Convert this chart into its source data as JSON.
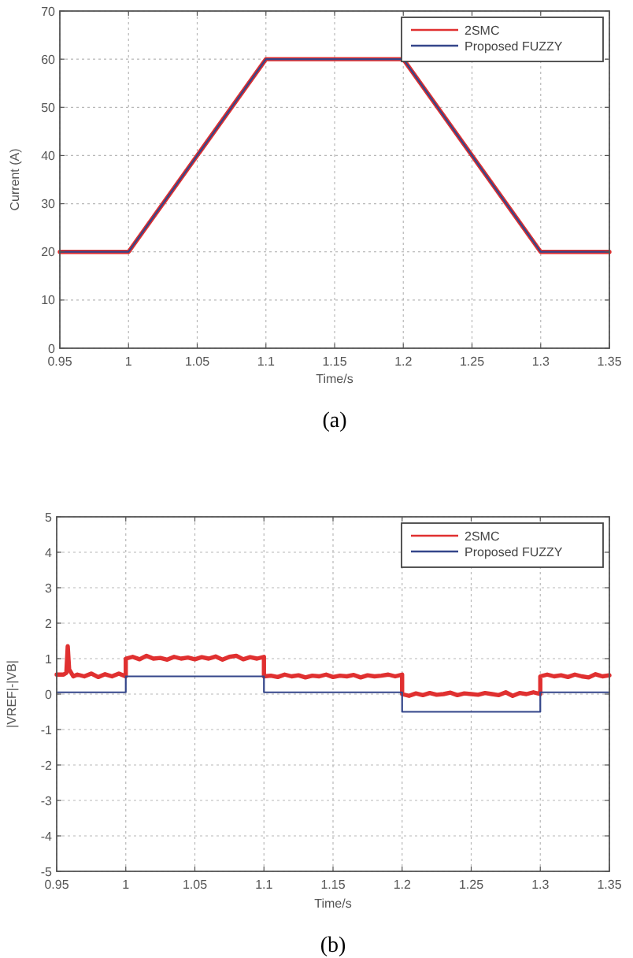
{
  "chart_data": [
    {
      "type": "line",
      "xlabel": "Time/s",
      "ylabel": "Current (A)",
      "annotations": [
        "(a)"
      ],
      "xlim": [
        0.95,
        1.35
      ],
      "xticks": [
        0.95,
        1,
        1.05,
        1.1,
        1.15,
        1.2,
        1.25,
        1.3,
        1.35
      ],
      "ylim": [
        0,
        70
      ],
      "yticks": [
        0,
        10,
        20,
        30,
        40,
        50,
        60,
        70
      ],
      "grid": true,
      "legend": "top right",
      "series": [
        {
          "name": "2SMC",
          "color": "#e03030",
          "x": [
            0.95,
            1.0,
            1.1,
            1.2,
            1.3,
            1.35
          ],
          "values": [
            20,
            20,
            60,
            60,
            20,
            20
          ]
        },
        {
          "name": "Proposed FUZZY",
          "color": "#34468a",
          "x": [
            0.95,
            1.0,
            1.1,
            1.2,
            1.3,
            1.35
          ],
          "values": [
            20,
            20,
            60,
            60,
            20,
            20
          ]
        }
      ]
    },
    {
      "type": "line",
      "xlabel": "Time/s",
      "ylabel": "|VREF|-|VB|",
      "annotations": [
        "(b)"
      ],
      "xlim": [
        0.95,
        1.35
      ],
      "xticks": [
        0.95,
        1,
        1.05,
        1.1,
        1.15,
        1.2,
        1.25,
        1.3,
        1.35
      ],
      "ylim": [
        -5,
        5
      ],
      "yticks": [
        -5,
        -4,
        -3,
        -2,
        -1,
        0,
        1,
        2,
        3,
        4,
        5
      ],
      "grid": true,
      "legend": "top right",
      "series": [
        {
          "name": "2SMC",
          "color": "#e03030",
          "x": [
            0.95,
            0.955,
            0.957,
            0.958,
            0.959,
            0.962,
            0.965,
            0.97,
            0.975,
            0.98,
            0.985,
            0.99,
            0.995,
            1.0,
            1.0,
            1.005,
            1.01,
            1.015,
            1.02,
            1.025,
            1.03,
            1.035,
            1.04,
            1.045,
            1.05,
            1.055,
            1.06,
            1.065,
            1.07,
            1.075,
            1.08,
            1.085,
            1.09,
            1.095,
            1.1,
            1.1,
            1.105,
            1.11,
            1.115,
            1.12,
            1.125,
            1.13,
            1.135,
            1.14,
            1.145,
            1.15,
            1.155,
            1.16,
            1.165,
            1.17,
            1.175,
            1.18,
            1.185,
            1.19,
            1.195,
            1.2,
            1.2,
            1.205,
            1.21,
            1.215,
            1.22,
            1.225,
            1.23,
            1.235,
            1.24,
            1.245,
            1.25,
            1.255,
            1.26,
            1.265,
            1.27,
            1.275,
            1.28,
            1.285,
            1.29,
            1.295,
            1.3,
            1.3,
            1.305,
            1.31,
            1.315,
            1.32,
            1.325,
            1.33,
            1.335,
            1.34,
            1.345,
            1.35
          ],
          "values": [
            0.55,
            0.55,
            0.6,
            1.35,
            0.7,
            0.5,
            0.55,
            0.5,
            0.58,
            0.48,
            0.56,
            0.5,
            0.58,
            0.5,
            1.0,
            1.05,
            0.98,
            1.08,
            1.0,
            1.02,
            0.97,
            1.05,
            1.0,
            1.03,
            0.98,
            1.04,
            1.0,
            1.06,
            0.97,
            1.05,
            1.08,
            0.98,
            1.04,
            1.0,
            1.05,
            0.5,
            0.52,
            0.48,
            0.55,
            0.5,
            0.53,
            0.47,
            0.52,
            0.5,
            0.55,
            0.48,
            0.52,
            0.5,
            0.54,
            0.47,
            0.53,
            0.5,
            0.52,
            0.55,
            0.5,
            0.55,
            0.0,
            -0.05,
            0.02,
            -0.03,
            0.03,
            -0.02,
            0.0,
            0.04,
            -0.03,
            0.02,
            0.0,
            -0.02,
            0.03,
            0.0,
            -0.03,
            0.05,
            -0.05,
            0.03,
            0.0,
            0.05,
            0.0,
            0.5,
            0.55,
            0.5,
            0.53,
            0.48,
            0.55,
            0.5,
            0.47,
            0.56,
            0.5,
            0.53
          ]
        },
        {
          "name": "Proposed FUZZY",
          "color": "#34468a",
          "x": [
            0.95,
            1.0,
            1.0,
            1.1,
            1.1,
            1.2,
            1.2,
            1.3,
            1.3,
            1.35
          ],
          "values": [
            0.05,
            0.05,
            0.5,
            0.5,
            0.05,
            0.05,
            -0.5,
            -0.5,
            0.05,
            0.05
          ]
        }
      ]
    }
  ]
}
